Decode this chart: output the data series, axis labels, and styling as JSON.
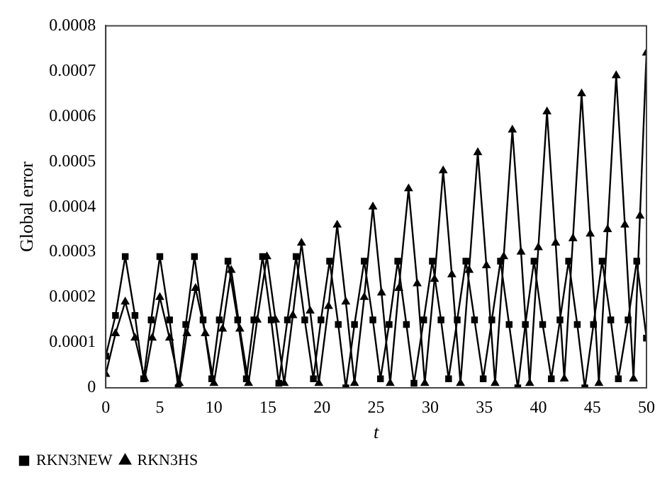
{
  "chart_data": {
    "type": "line",
    "xlabel": "t",
    "ylabel": "Global error",
    "xlim": [
      0,
      50
    ],
    "xticks": [
      0,
      5,
      10,
      15,
      20,
      25,
      30,
      35,
      40,
      45,
      50
    ],
    "ylim": [
      0,
      0.0008
    ],
    "yticks": [
      0,
      0.0001,
      0.0002,
      0.0003,
      0.0004,
      0.0005,
      0.0006,
      0.0007,
      0.0008
    ],
    "grid": false,
    "legend": "bottom",
    "line_style": "solid",
    "series": [
      {
        "name": "RKN3NEW",
        "color": "#000000",
        "marker": "square",
        "x": [
          0,
          0.9,
          1.8,
          2.7,
          3.5,
          4.2,
          5.0,
          5.9,
          6.7,
          7.4,
          8.2,
          9.0,
          9.8,
          10.5,
          11.3,
          12.2,
          13.0,
          13.7,
          14.5,
          15.3,
          16.0,
          16.8,
          17.6,
          18.4,
          19.2,
          19.9,
          20.7,
          21.5,
          22.2,
          23.0,
          23.9,
          24.7,
          25.4,
          26.2,
          27.0,
          27.8,
          28.5,
          29.4,
          30.2,
          31.0,
          31.7,
          32.5,
          33.3,
          34.1,
          34.9,
          35.7,
          36.5,
          37.3,
          38.1,
          38.8,
          39.6,
          40.4,
          41.2,
          42.0,
          42.8,
          43.6,
          44.3,
          45.1,
          45.9,
          46.7,
          47.4,
          48.3,
          49.1,
          50
        ],
        "values": [
          7e-05,
          0.00016,
          0.00029,
          0.00016,
          2e-05,
          0.00015,
          0.00029,
          0.00015,
          0.0,
          0.00014,
          0.00029,
          0.00015,
          2e-05,
          0.00015,
          0.00028,
          0.00015,
          2e-05,
          0.00015,
          0.00029,
          0.00015,
          1e-05,
          0.00015,
          0.00029,
          0.00015,
          2e-05,
          0.00015,
          0.00028,
          0.00014,
          0.0,
          0.00014,
          0.00028,
          0.00015,
          2e-05,
          0.00014,
          0.00028,
          0.00014,
          1e-05,
          0.00015,
          0.00028,
          0.00015,
          2e-05,
          0.00015,
          0.00028,
          0.00015,
          2e-05,
          0.00015,
          0.00028,
          0.00014,
          0.0,
          0.00014,
          0.00028,
          0.00014,
          2e-05,
          0.00015,
          0.00028,
          0.00014,
          0.0,
          0.00014,
          0.00028,
          0.00015,
          2e-05,
          0.00015,
          0.00028,
          0.00011
        ]
      },
      {
        "name": "RKN3HS",
        "color": "#000000",
        "marker": "triangle",
        "x": [
          0,
          0.9,
          1.8,
          2.7,
          3.6,
          4.3,
          5.0,
          5.9,
          6.8,
          7.5,
          8.3,
          9.2,
          10.0,
          10.8,
          11.6,
          12.4,
          13.2,
          14.0,
          14.9,
          15.7,
          16.5,
          17.3,
          18.1,
          18.9,
          19.7,
          20.6,
          21.4,
          22.2,
          23.0,
          23.9,
          24.7,
          25.5,
          26.3,
          27.1,
          28.0,
          28.8,
          29.5,
          30.4,
          31.2,
          32.0,
          32.8,
          33.6,
          34.4,
          35.2,
          36.0,
          36.8,
          37.6,
          38.4,
          39.2,
          40.0,
          40.8,
          41.6,
          42.4,
          43.2,
          44.0,
          44.8,
          45.6,
          46.4,
          47.2,
          48.0,
          48.8,
          49.4,
          50.0
        ],
        "values": [
          3e-05,
          0.00012,
          0.00019,
          0.00011,
          2e-05,
          0.00011,
          0.0002,
          0.00011,
          1e-05,
          0.00012,
          0.00022,
          0.00012,
          1e-05,
          0.00013,
          0.00026,
          0.00013,
          1e-05,
          0.00015,
          0.00029,
          0.00015,
          1e-05,
          0.00016,
          0.00032,
          0.00017,
          1e-05,
          0.00018,
          0.00036,
          0.00019,
          1e-05,
          0.0002,
          0.0004,
          0.00021,
          1e-05,
          0.00022,
          0.00044,
          0.00023,
          1e-05,
          0.00024,
          0.00048,
          0.00025,
          1e-05,
          0.00026,
          0.00052,
          0.00027,
          1e-05,
          0.00029,
          0.00057,
          0.0003,
          1e-05,
          0.00031,
          0.00061,
          0.00032,
          2e-05,
          0.00033,
          0.00065,
          0.00034,
          1e-05,
          0.00035,
          0.00069,
          0.00036,
          2e-05,
          0.00038,
          0.00074
        ]
      }
    ]
  }
}
